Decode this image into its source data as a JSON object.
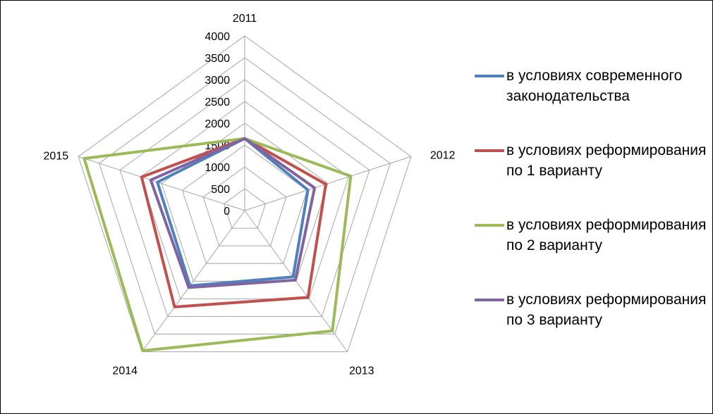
{
  "chart_data": {
    "type": "radar",
    "categories": [
      "2011",
      "2012",
      "2013",
      "2014",
      "2015"
    ],
    "axis": {
      "min": 0,
      "max": 4000,
      "step": 500,
      "tick_labels": [
        "0",
        "500",
        "1000",
        "1500",
        "2000",
        "2500",
        "3000",
        "3500",
        "4000"
      ]
    },
    "grid": true,
    "legend_position": "right",
    "series": [
      {
        "name": "в условиях современного законодательства",
        "color": "#4F81BD",
        "values": [
          1650,
          1520,
          1880,
          2130,
          2100
        ]
      },
      {
        "name": "в условиях реформирования по 1 варианту",
        "color": "#C0504D",
        "values": [
          1650,
          1950,
          2460,
          2730,
          2480
        ]
      },
      {
        "name": "в условиях реформирования по 2 варианту",
        "color": "#9BBB59",
        "values": [
          1650,
          2550,
          3410,
          3970,
          3860
        ]
      },
      {
        "name": "в условиях реформирования по 3 варианту",
        "color": "#8064A2",
        "values": [
          1650,
          1680,
          1970,
          2180,
          2260
        ]
      }
    ]
  }
}
